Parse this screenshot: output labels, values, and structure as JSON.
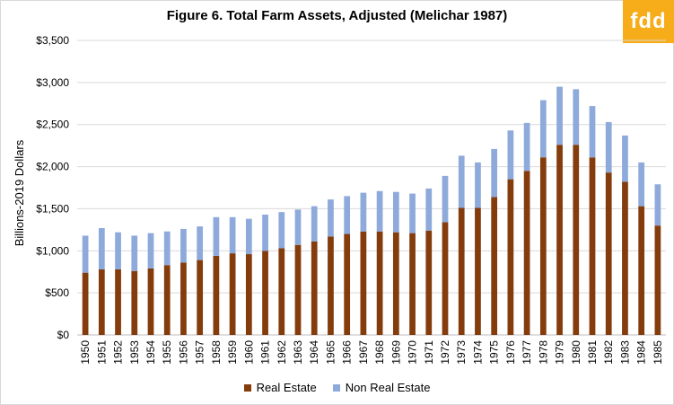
{
  "colors": {
    "real_estate": "#843c0c",
    "non_real_estate": "#8eaadb",
    "gridline": "#d9d9d9",
    "logo_bg": "#f7ad19"
  },
  "logo": {
    "text": "fdd"
  },
  "chart_data": {
    "type": "bar",
    "stacked": true,
    "title": "Figure 6. Total Farm Assets, Adjusted (Melichar 1987)",
    "ylabel": "Billions-2019 Dollars",
    "xlabel": "",
    "ylim": [
      0,
      3500
    ],
    "yticks": [
      0,
      500,
      1000,
      1500,
      2000,
      2500,
      3000,
      3500
    ],
    "ytick_labels": [
      "$0",
      "$500",
      "$1,000",
      "$1,500",
      "$2,000",
      "$2,500",
      "$3,000",
      "$3,500"
    ],
    "grid": true,
    "legend_position": "bottom",
    "categories": [
      "1950",
      "1951",
      "1952",
      "1953",
      "1954",
      "1955",
      "1956",
      "1957",
      "1958",
      "1959",
      "1960",
      "1961",
      "1962",
      "1963",
      "1964",
      "1965",
      "1966",
      "1967",
      "1968",
      "1969",
      "1970",
      "1971",
      "1972",
      "1973",
      "1974",
      "1975",
      "1976",
      "1977",
      "1978",
      "1979",
      "1980",
      "1981",
      "1982",
      "1983",
      "1984",
      "1985"
    ],
    "series": [
      {
        "name": "Real Estate",
        "values": [
          740,
          780,
          780,
          760,
          790,
          830,
          860,
          890,
          940,
          970,
          960,
          1000,
          1030,
          1070,
          1110,
          1170,
          1200,
          1230,
          1230,
          1220,
          1210,
          1240,
          1340,
          1510,
          1510,
          1640,
          1850,
          1950,
          2110,
          2260,
          2260,
          2110,
          1930,
          1820,
          1530,
          1300
        ]
      },
      {
        "name": "Non Real Estate",
        "values": [
          440,
          490,
          440,
          420,
          420,
          400,
          400,
          400,
          460,
          430,
          420,
          430,
          430,
          420,
          420,
          440,
          450,
          460,
          480,
          480,
          470,
          500,
          550,
          620,
          540,
          570,
          580,
          570,
          680,
          690,
          660,
          610,
          600,
          550,
          520,
          490
        ]
      }
    ]
  }
}
